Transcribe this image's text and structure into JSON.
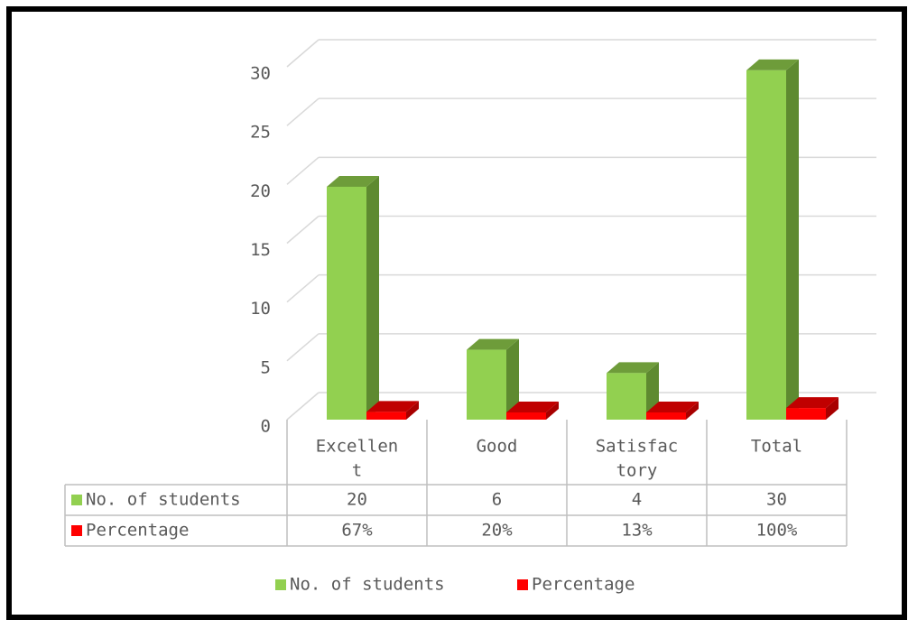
{
  "chart_data": {
    "type": "bar",
    "categories": [
      [
        "Excellen",
        "t"
      ],
      [
        "Good"
      ],
      [
        "Satisfac",
        "tory"
      ],
      [
        "Total"
      ]
    ],
    "series": [
      {
        "name": "No. of students",
        "values": [
          20,
          6,
          4,
          30
        ],
        "labels": [
          "20",
          "6",
          "4",
          "30"
        ],
        "color": "#92d050",
        "side_color": "#5e8a30",
        "top_color": "#6e9c3a"
      },
      {
        "name": "Percentage",
        "values": [
          0.67,
          0.2,
          0.13,
          1.0
        ],
        "labels": [
          "67%",
          "20%",
          "13%",
          "100%"
        ],
        "color": "#ff0000",
        "side_color": "#a80000",
        "top_color": "#c00000"
      }
    ],
    "yticks": [
      "0",
      "5",
      "10",
      "15",
      "20",
      "25",
      "30"
    ],
    "ylim": [
      0,
      30
    ],
    "grid": true,
    "legend_position": "bottom",
    "data_table": true,
    "three_d": true
  }
}
